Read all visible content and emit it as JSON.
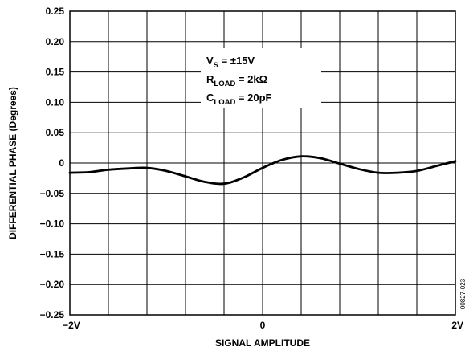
{
  "chart_data": {
    "type": "line",
    "xlabel": "SIGNAL AMPLITUDE",
    "ylabel": "DIFFERENTIAL PHASE (Degrees)",
    "xlim": [
      -2,
      2
    ],
    "ylim": [
      -0.25,
      0.25
    ],
    "x_tick_labels": [
      "−2V",
      "0",
      "2V"
    ],
    "y_ticks": [
      {
        "value": 0.25,
        "label": "0.25"
      },
      {
        "value": 0.2,
        "label": "0.20"
      },
      {
        "value": 0.15,
        "label": "0.15"
      },
      {
        "value": 0.1,
        "label": "0.10"
      },
      {
        "value": 0.05,
        "label": "0.05"
      },
      {
        "value": 0,
        "label": "0"
      },
      {
        "value": -0.05,
        "label": "−0.05"
      },
      {
        "value": -0.1,
        "label": "−0.10"
      },
      {
        "value": -0.15,
        "label": "−0.15"
      },
      {
        "value": -0.2,
        "label": "−0.20"
      },
      {
        "value": -0.25,
        "label": "−0.25"
      }
    ],
    "grid": true,
    "grid_divisions": {
      "x": 10,
      "y": 10
    },
    "annotations": [
      {
        "main": "V",
        "sub": "S",
        "rest": " = ±15V"
      },
      {
        "main": "R",
        "sub": "LOAD",
        "rest": " = 2kΩ"
      },
      {
        "main": "C",
        "sub": "LOAD",
        "rest": " = 20pF"
      }
    ],
    "figure_id": "00827-023",
    "series": [
      {
        "x": [
          -2.0,
          -1.8,
          -1.6,
          -1.4,
          -1.2,
          -1.0,
          -0.8,
          -0.6,
          -0.4,
          -0.2,
          0.0,
          0.2,
          0.4,
          0.6,
          0.8,
          1.0,
          1.2,
          1.4,
          1.6,
          1.8,
          2.0
        ],
        "values": [
          -0.016,
          -0.015,
          -0.011,
          -0.009,
          -0.008,
          -0.013,
          -0.022,
          -0.031,
          -0.034,
          -0.024,
          -0.008,
          0.005,
          0.011,
          0.008,
          -0.001,
          -0.01,
          -0.016,
          -0.016,
          -0.013,
          -0.005,
          0.003
        ]
      }
    ]
  }
}
